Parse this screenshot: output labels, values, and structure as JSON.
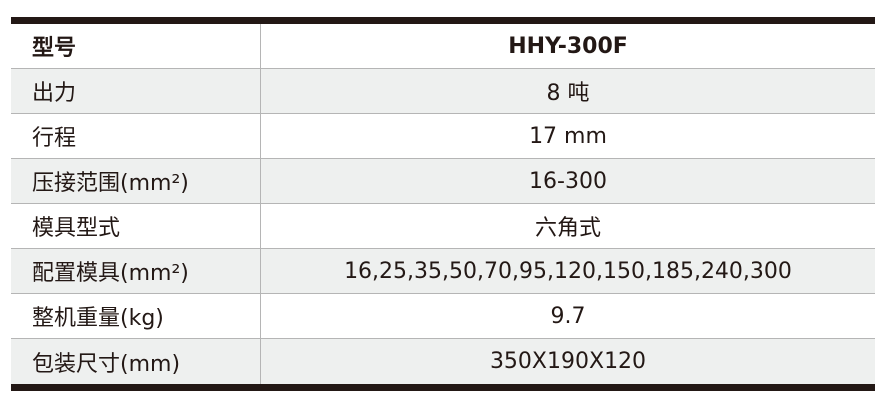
{
  "spec_table": {
    "rows": [
      {
        "label": "型号",
        "value": "HHY-300F"
      },
      {
        "label": "出力",
        "value": "8 吨"
      },
      {
        "label": "行程",
        "value": "17 mm"
      },
      {
        "label": "压接范围(mm²)",
        "value": "16-300"
      },
      {
        "label": "模具型式",
        "value": "六角式"
      },
      {
        "label": "配置模具(mm²)",
        "value": "16,25,35,50,70,95,120,150,185,240,300"
      },
      {
        "label": "整机重量(kg)",
        "value": "9.7"
      },
      {
        "label": "包装尺寸(mm)",
        "value": "350X190X120"
      }
    ],
    "colors": {
      "rule": "#231815",
      "alt_row": "#eef0ef",
      "divider": "#b5b5b5"
    }
  }
}
